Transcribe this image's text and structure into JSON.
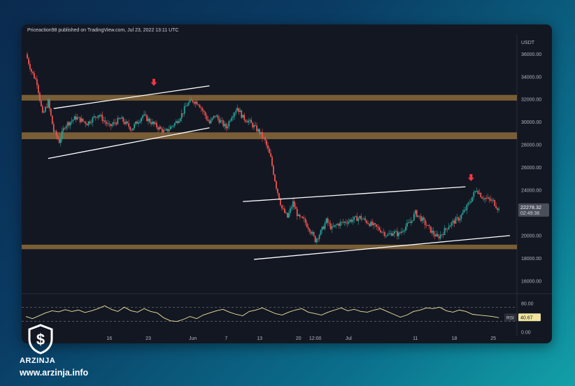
{
  "header": {
    "publisher_line": "Priceaction98 published on TradingView.com, Jul 23, 2022 13:11 UTC"
  },
  "brand": {
    "name": "ARZINJA",
    "website": "www.arzinja.info"
  },
  "chart_data": [
    {
      "type": "line",
      "subtype": "candlestick",
      "ylabel": "USDT",
      "ylim": [
        15000,
        37500
      ],
      "y_ticks": [
        "36000.00",
        "34000.00",
        "32000.00",
        "30000.00",
        "28000.00",
        "26000.00",
        "24000.00",
        "22000.00",
        "20000.00",
        "18000.00",
        "16000.00"
      ],
      "y_tick_values": [
        36000,
        34000,
        32000,
        30000,
        28000,
        26000,
        24000,
        22000,
        20000,
        18000,
        16000
      ],
      "x_ticks": [
        "16",
        "23",
        "Jun",
        "7",
        "13",
        "20",
        "12:00",
        "Jul",
        "11",
        "18",
        "25"
      ],
      "x_tick_days": [
        15,
        22,
        30,
        36,
        42,
        49,
        52,
        58,
        70,
        77,
        84
      ],
      "x_range_days": [
        0,
        88
      ],
      "last_price_label": "22278.32",
      "countdown_label": "02:49:38",
      "last_price": 22278.32,
      "close_path": [
        [
          0,
          36000
        ],
        [
          1,
          34500
        ],
        [
          2,
          33500
        ],
        [
          3,
          30600
        ],
        [
          4,
          31800
        ],
        [
          5,
          29200
        ],
        [
          6,
          28300
        ],
        [
          7,
          29700
        ],
        [
          9,
          30400
        ],
        [
          11,
          29900
        ],
        [
          13,
          30700
        ],
        [
          15,
          29600
        ],
        [
          17,
          30300
        ],
        [
          19,
          29400
        ],
        [
          21,
          30600
        ],
        [
          23,
          29800
        ],
        [
          25,
          29100
        ],
        [
          27,
          30000
        ],
        [
          28,
          30700
        ],
        [
          29,
          31600
        ],
        [
          30,
          31900
        ],
        [
          31,
          31700
        ],
        [
          32,
          30800
        ],
        [
          33,
          29900
        ],
        [
          34,
          30600
        ],
        [
          36,
          29500
        ],
        [
          37,
          30600
        ],
        [
          38,
          31300
        ],
        [
          39,
          30400
        ],
        [
          40,
          30100
        ],
        [
          41,
          29600
        ],
        [
          42,
          29100
        ],
        [
          43,
          28300
        ],
        [
          44,
          26800
        ],
        [
          45,
          24300
        ],
        [
          46,
          22400
        ],
        [
          47,
          21600
        ],
        [
          48,
          22900
        ],
        [
          49,
          21600
        ],
        [
          50,
          21300
        ],
        [
          51,
          20600
        ],
        [
          52,
          19600
        ],
        [
          53,
          20300
        ],
        [
          54,
          21300
        ],
        [
          55,
          20600
        ],
        [
          56,
          21000
        ],
        [
          58,
          21300
        ],
        [
          60,
          21600
        ],
        [
          62,
          21000
        ],
        [
          64,
          20400
        ],
        [
          65,
          20000
        ],
        [
          66,
          20300
        ],
        [
          67,
          20100
        ],
        [
          68,
          20700
        ],
        [
          69,
          21100
        ],
        [
          70,
          22000
        ],
        [
          71,
          21500
        ],
        [
          72,
          20900
        ],
        [
          73,
          20300
        ],
        [
          74,
          19800
        ],
        [
          75,
          20300
        ],
        [
          76,
          20900
        ],
        [
          78,
          21600
        ],
        [
          79,
          22300
        ],
        [
          80,
          23200
        ],
        [
          81,
          24100
        ],
        [
          82,
          23400
        ],
        [
          83,
          23200
        ],
        [
          84,
          23000
        ],
        [
          85,
          22278
        ]
      ],
      "support_resistance_zones": [
        {
          "low": 31900,
          "high": 32400
        },
        {
          "low": 28500,
          "high": 29100
        },
        {
          "low": 18800,
          "high": 19200
        }
      ],
      "trend_lines": [
        {
          "from": [
            5,
            31200
          ],
          "to": [
            33,
            33200
          ]
        },
        {
          "from": [
            4,
            26800
          ],
          "to": [
            33,
            29500
          ]
        },
        {
          "from": [
            39,
            23000
          ],
          "to": [
            79,
            24300
          ]
        },
        {
          "from": [
            41,
            17900
          ],
          "to": [
            87,
            20000
          ]
        }
      ],
      "arrows": [
        {
          "day": 23,
          "price": 33200
        },
        {
          "day": 80,
          "price": 24800
        }
      ],
      "up_color": "#26a69a",
      "down_color": "#ef5350",
      "zone_color": "#8b6a3a",
      "arrow_color": "#f23645"
    },
    {
      "type": "line",
      "name": "RSI",
      "ylim": [
        0,
        100
      ],
      "y_ticks": [
        "80.00",
        "0.00"
      ],
      "y_tick_values": [
        80,
        0
      ],
      "guide_levels": [
        70,
        30
      ],
      "last_value_label": "40.67",
      "indicator_label": "RSI",
      "line_color": "#f0e6a0",
      "values": [
        [
          0,
          44
        ],
        [
          2,
          38
        ],
        [
          4,
          46
        ],
        [
          6,
          54
        ],
        [
          8,
          60
        ],
        [
          10,
          57
        ],
        [
          12,
          63
        ],
        [
          14,
          58
        ],
        [
          16,
          62
        ],
        [
          18,
          55
        ],
        [
          20,
          60
        ],
        [
          22,
          66
        ],
        [
          24,
          74
        ],
        [
          26,
          64
        ],
        [
          28,
          58
        ],
        [
          30,
          70
        ],
        [
          32,
          60
        ],
        [
          34,
          56
        ],
        [
          36,
          66
        ],
        [
          38,
          58
        ],
        [
          40,
          54
        ],
        [
          42,
          40
        ],
        [
          44,
          32
        ],
        [
          46,
          30
        ],
        [
          48,
          36
        ],
        [
          50,
          44
        ],
        [
          52,
          38
        ],
        [
          54,
          48
        ],
        [
          56,
          54
        ],
        [
          58,
          60
        ],
        [
          60,
          64
        ],
        [
          62,
          56
        ],
        [
          64,
          50
        ],
        [
          66,
          46
        ],
        [
          68,
          58
        ],
        [
          70,
          62
        ],
        [
          72,
          68
        ],
        [
          74,
          60
        ],
        [
          76,
          52
        ],
        [
          78,
          48
        ],
        [
          80,
          56
        ],
        [
          82,
          62
        ],
        [
          84,
          66
        ],
        [
          86,
          56
        ],
        [
          88,
          52
        ],
        [
          90,
          48
        ],
        [
          92,
          56
        ],
        [
          94,
          62
        ],
        [
          96,
          68
        ],
        [
          98,
          60
        ],
        [
          100,
          64
        ],
        [
          102,
          58
        ],
        [
          104,
          56
        ],
        [
          106,
          62
        ],
        [
          108,
          66
        ],
        [
          110,
          58
        ],
        [
          112,
          50
        ],
        [
          114,
          42
        ],
        [
          116,
          48
        ],
        [
          118,
          58
        ],
        [
          120,
          62
        ],
        [
          122,
          68
        ],
        [
          124,
          66
        ],
        [
          126,
          70
        ],
        [
          128,
          60
        ],
        [
          130,
          56
        ],
        [
          132,
          62
        ],
        [
          134,
          58
        ],
        [
          136,
          50
        ],
        [
          138,
          48
        ],
        [
          140,
          46
        ],
        [
          142,
          44
        ],
        [
          144,
          40.67
        ]
      ]
    }
  ]
}
